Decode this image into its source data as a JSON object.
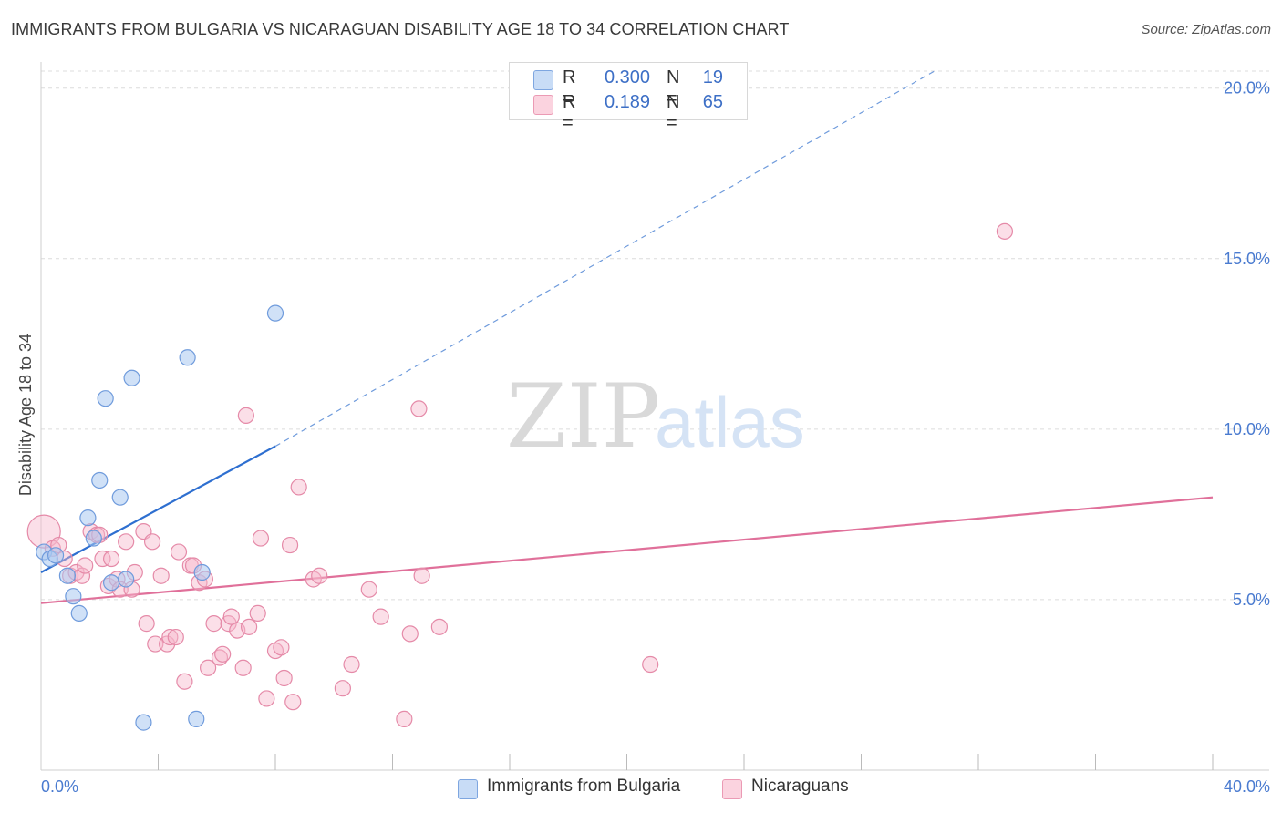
{
  "header": {
    "title": "IMMIGRANTS FROM BULGARIA VS NICARAGUAN DISABILITY AGE 18 TO 34 CORRELATION CHART",
    "source": "Source: ZipAtlas.com"
  },
  "watermark": {
    "zip": "ZIP",
    "atlas": "atlas"
  },
  "legend": {
    "rows": [
      {
        "r_label": "R =",
        "r_value": "0.300",
        "n_label": "N =",
        "n_value": "19",
        "color": "#aac8f0"
      },
      {
        "r_label": "R =",
        "r_value": "0.189",
        "n_label": "N =",
        "n_value": "65",
        "color": "#f7b8cb"
      }
    ]
  },
  "bottom_legend": {
    "series_a": "Immigrants from Bulgaria",
    "series_b": "Nicaraguans"
  },
  "colors": {
    "blue_fill": "#aac8f0",
    "blue_stroke": "#6f9bdc",
    "blue_line": "#2e6fd0",
    "pink_fill": "#f7b8cb",
    "pink_stroke": "#e58aa8",
    "pink_line": "#e0709a",
    "grid": "#dcdcdc",
    "tick": "#4a7bd0"
  },
  "chart_data": {
    "type": "scatter",
    "title": "IMMIGRANTS FROM BULGARIA VS NICARAGUAN DISABILITY AGE 18 TO 34 CORRELATION CHART",
    "xlabel": "",
    "ylabel": "Disability Age 18 to 34",
    "xlim": [
      0,
      40
    ],
    "ylim": [
      0,
      20.5
    ],
    "x_tick_labels": [
      {
        "value": 0,
        "label": "0.0%"
      },
      {
        "value": 40,
        "label": "40.0%"
      }
    ],
    "y_tick_labels": [
      {
        "value": 5,
        "label": "5.0%"
      },
      {
        "value": 10,
        "label": "10.0%"
      },
      {
        "value": 15,
        "label": "15.0%"
      },
      {
        "value": 20,
        "label": "20.0%"
      }
    ],
    "x_minor_ticks": [
      4,
      8,
      12,
      16,
      20,
      24,
      28,
      32,
      36,
      40
    ],
    "series": [
      {
        "name": "Immigrants from Bulgaria",
        "r": 0.3,
        "n": 19,
        "points": [
          {
            "x": 0.1,
            "y": 6.4
          },
          {
            "x": 0.3,
            "y": 6.2
          },
          {
            "x": 0.5,
            "y": 6.3
          },
          {
            "x": 0.9,
            "y": 5.7
          },
          {
            "x": 1.1,
            "y": 5.1
          },
          {
            "x": 1.3,
            "y": 4.6
          },
          {
            "x": 1.6,
            "y": 7.4
          },
          {
            "x": 1.8,
            "y": 6.8
          },
          {
            "x": 2.0,
            "y": 8.5
          },
          {
            "x": 2.2,
            "y": 10.9
          },
          {
            "x": 2.4,
            "y": 5.5
          },
          {
            "x": 2.7,
            "y": 8.0
          },
          {
            "x": 2.9,
            "y": 5.6
          },
          {
            "x": 3.1,
            "y": 11.5
          },
          {
            "x": 3.5,
            "y": 1.4
          },
          {
            "x": 5.0,
            "y": 12.1
          },
          {
            "x": 5.3,
            "y": 1.5
          },
          {
            "x": 5.5,
            "y": 5.8
          },
          {
            "x": 8.0,
            "y": 13.4
          }
        ],
        "trend": {
          "x0": 0,
          "y0": 5.8,
          "x1": 8.0,
          "y1": 9.5,
          "dashed_to_x": 30.5,
          "dashed_to_y": 20.5
        }
      },
      {
        "name": "Nicaraguans",
        "r": 0.189,
        "n": 65,
        "points": [
          {
            "x": 0.1,
            "y": 7.0
          },
          {
            "x": 0.4,
            "y": 6.5
          },
          {
            "x": 0.6,
            "y": 6.6
          },
          {
            "x": 0.8,
            "y": 6.2
          },
          {
            "x": 1.0,
            "y": 5.7
          },
          {
            "x": 1.2,
            "y": 5.8
          },
          {
            "x": 1.4,
            "y": 5.7
          },
          {
            "x": 1.5,
            "y": 6.0
          },
          {
            "x": 1.7,
            "y": 7.0
          },
          {
            "x": 1.9,
            "y": 6.9
          },
          {
            "x": 2.0,
            "y": 6.9
          },
          {
            "x": 2.1,
            "y": 6.2
          },
          {
            "x": 2.3,
            "y": 5.4
          },
          {
            "x": 2.4,
            "y": 6.2
          },
          {
            "x": 2.6,
            "y": 5.6
          },
          {
            "x": 2.7,
            "y": 5.3
          },
          {
            "x": 2.9,
            "y": 6.7
          },
          {
            "x": 3.1,
            "y": 5.3
          },
          {
            "x": 3.2,
            "y": 5.8
          },
          {
            "x": 3.5,
            "y": 7.0
          },
          {
            "x": 3.6,
            "y": 4.3
          },
          {
            "x": 3.8,
            "y": 6.7
          },
          {
            "x": 3.9,
            "y": 3.7
          },
          {
            "x": 4.1,
            "y": 5.7
          },
          {
            "x": 4.3,
            "y": 3.7
          },
          {
            "x": 4.4,
            "y": 3.9
          },
          {
            "x": 4.6,
            "y": 3.9
          },
          {
            "x": 4.7,
            "y": 6.4
          },
          {
            "x": 4.9,
            "y": 2.6
          },
          {
            "x": 5.1,
            "y": 6.0
          },
          {
            "x": 5.2,
            "y": 6.0
          },
          {
            "x": 5.4,
            "y": 5.5
          },
          {
            "x": 5.6,
            "y": 5.6
          },
          {
            "x": 5.7,
            "y": 3.0
          },
          {
            "x": 5.9,
            "y": 4.3
          },
          {
            "x": 6.1,
            "y": 3.3
          },
          {
            "x": 6.2,
            "y": 3.4
          },
          {
            "x": 6.4,
            "y": 4.3
          },
          {
            "x": 6.5,
            "y": 4.5
          },
          {
            "x": 6.7,
            "y": 4.1
          },
          {
            "x": 6.9,
            "y": 3.0
          },
          {
            "x": 7.0,
            "y": 10.4
          },
          {
            "x": 7.1,
            "y": 4.2
          },
          {
            "x": 7.4,
            "y": 4.6
          },
          {
            "x": 7.5,
            "y": 6.8
          },
          {
            "x": 7.7,
            "y": 2.1
          },
          {
            "x": 8.0,
            "y": 3.5
          },
          {
            "x": 8.2,
            "y": 3.6
          },
          {
            "x": 8.3,
            "y": 2.7
          },
          {
            "x": 8.5,
            "y": 6.6
          },
          {
            "x": 8.6,
            "y": 2.0
          },
          {
            "x": 8.8,
            "y": 8.3
          },
          {
            "x": 9.3,
            "y": 5.6
          },
          {
            "x": 9.5,
            "y": 5.7
          },
          {
            "x": 10.3,
            "y": 2.4
          },
          {
            "x": 10.6,
            "y": 3.1
          },
          {
            "x": 11.2,
            "y": 5.3
          },
          {
            "x": 11.6,
            "y": 4.5
          },
          {
            "x": 12.4,
            "y": 1.5
          },
          {
            "x": 12.6,
            "y": 4.0
          },
          {
            "x": 12.9,
            "y": 10.6
          },
          {
            "x": 13.0,
            "y": 5.7
          },
          {
            "x": 13.6,
            "y": 4.2
          },
          {
            "x": 20.8,
            "y": 3.1
          },
          {
            "x": 32.9,
            "y": 15.8
          }
        ],
        "trend": {
          "x0": 0,
          "y0": 4.9,
          "x1": 40,
          "y1": 8.0
        }
      }
    ]
  }
}
